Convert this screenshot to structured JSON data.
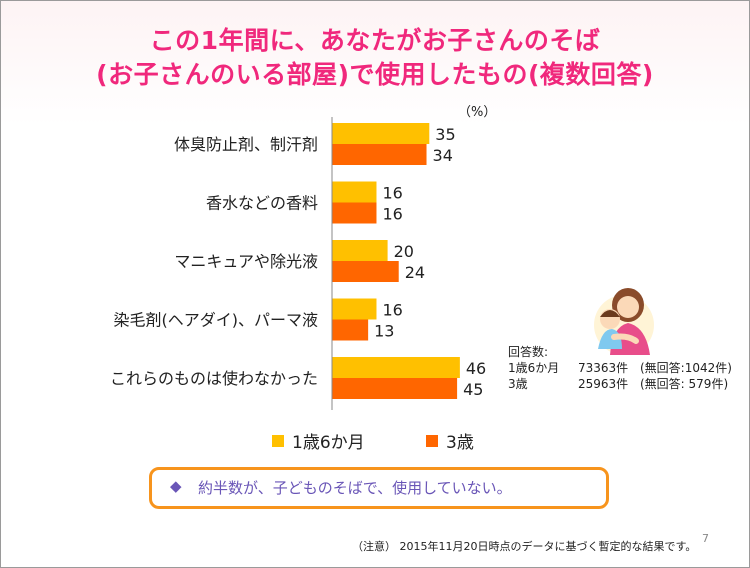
{
  "title": {
    "line1": "この1年間に、あなたがお子さんのそば",
    "line2": "(お子さんのいる部屋)で使用したもの(複数回答)"
  },
  "unit_label": "（%）",
  "chart_data": {
    "type": "bar",
    "orientation": "horizontal",
    "categories": [
      "体臭防止剤、制汗剤",
      "香水などの香料",
      "マニキュアや除光液",
      "染毛剤(ヘアダイ)、パーマ液",
      "これらのものは使わなかった"
    ],
    "series": [
      {
        "name": "1歳6か月",
        "values": [
          35,
          16,
          20,
          16,
          46
        ],
        "color": "#ffc000"
      },
      {
        "name": "3歳",
        "values": [
          34,
          16,
          24,
          13,
          45
        ],
        "color": "#ff6600"
      }
    ],
    "xlim": [
      0,
      100
    ],
    "legend": "bottom",
    "grid": false
  },
  "legend": {
    "item1": "1歳6か月",
    "item2": "3歳"
  },
  "respondents": {
    "heading": "回答数:",
    "row1": {
      "label": "1歳6か月",
      "count": "73363件",
      "noans": "(無回答:1042件)"
    },
    "row2": {
      "label": "3歳",
      "count": "25963件",
      "noans": "(無回答: 579件)"
    }
  },
  "callout": {
    "bullet": "◆",
    "text": "約半数が、子どものそばで、使用していない。"
  },
  "note": "（注意） 2015年11月20日時点のデータに基づく暫定的な結果です。",
  "page_number": "7",
  "colors": {
    "title": "#f0287c",
    "series1": "#ffc000",
    "series2": "#ff6600",
    "callout_border": "#f7941d",
    "callout_text": "#6a56b7"
  }
}
